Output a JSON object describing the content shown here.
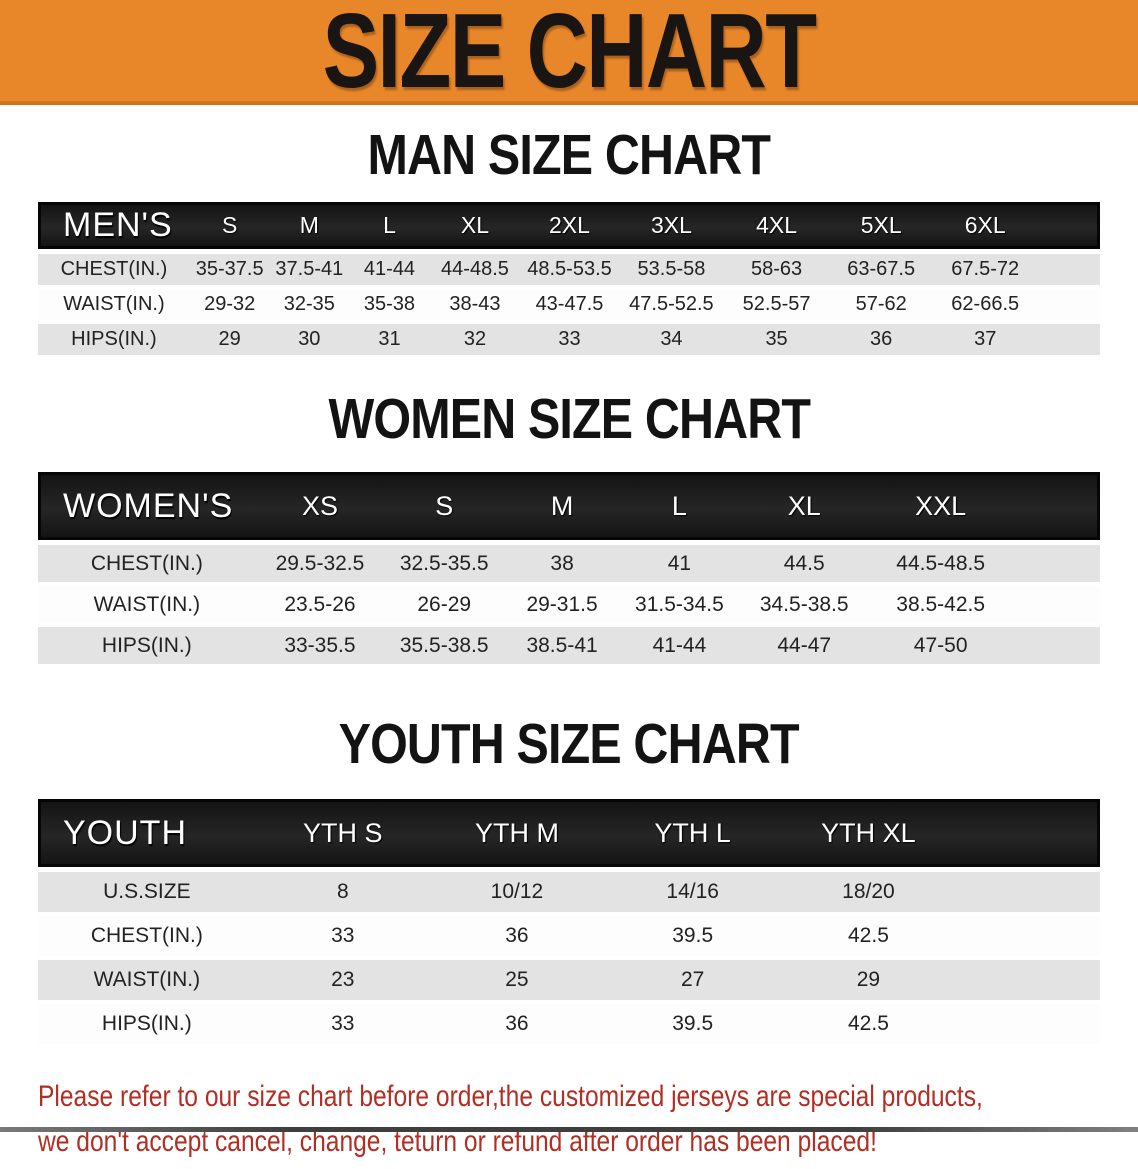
{
  "banner": {
    "title": "SIZE CHART",
    "bg_color": "#E8862A"
  },
  "sections": [
    {
      "heading": "MAN SIZE CHART",
      "table": {
        "header_label": "MEN'S",
        "sizes": [
          "S",
          "M",
          "L",
          "XL",
          "2XL",
          "3XL",
          "4XL",
          "5XL",
          "6XL"
        ],
        "rows": [
          {
            "label": "CHEST(IN.)",
            "values": [
              "35-37.5",
              "37.5-41",
              "41-44",
              "44-48.5",
              "48.5-53.5",
              "53.5-58",
              "58-63",
              "63-67.5",
              "67.5-72"
            ]
          },
          {
            "label": "WAIST(IN.)",
            "values": [
              "29-32",
              "32-35",
              "35-38",
              "38-43",
              "43-47.5",
              "47.5-52.5",
              "52.5-57",
              "57-62",
              "62-66.5"
            ]
          },
          {
            "label": "HIPS(IN.)",
            "values": [
              "29",
              "30",
              "31",
              "32",
              "33",
              "34",
              "35",
              "36",
              "37"
            ]
          }
        ]
      }
    },
    {
      "heading": "WOMEN SIZE CHART",
      "table": {
        "header_label": "WOMEN'S",
        "sizes": [
          "XS",
          "S",
          "M",
          "L",
          "XL",
          "XXL"
        ],
        "rows": [
          {
            "label": "CHEST(IN.)",
            "values": [
              "29.5-32.5",
              "32.5-35.5",
              "38",
              "41",
              "44.5",
              "44.5-48.5"
            ]
          },
          {
            "label": "WAIST(IN.)",
            "values": [
              "23.5-26",
              "26-29",
              "29-31.5",
              "31.5-34.5",
              "34.5-38.5",
              "38.5-42.5"
            ]
          },
          {
            "label": "HIPS(IN.)",
            "values": [
              "33-35.5",
              "35.5-38.5",
              "38.5-41",
              "41-44",
              "44-47",
              "47-50"
            ]
          }
        ]
      }
    },
    {
      "heading": "YOUTH SIZE CHART",
      "table": {
        "header_label": "YOUTH",
        "sizes": [
          "YTH S",
          "YTH M",
          "YTH L",
          "YTH XL"
        ],
        "rows": [
          {
            "label": "U.S.SIZE",
            "values": [
              "8",
              "10/12",
              "14/16",
              "18/20"
            ]
          },
          {
            "label": "CHEST(IN.)",
            "values": [
              "33",
              "36",
              "39.5",
              "42.5"
            ]
          },
          {
            "label": "WAIST(IN.)",
            "values": [
              "23",
              "25",
              "27",
              "29"
            ]
          },
          {
            "label": "HIPS(IN.)",
            "values": [
              "33",
              "36",
              "39.5",
              "42.5"
            ]
          }
        ]
      }
    }
  ],
  "disclaimer": {
    "line1": "Please refer to our size chart before order,the customized jerseys are special products,",
    "line2": "we don't accept cancel, change, teturn or refund after order has been placed!",
    "color": "#B22E23"
  }
}
